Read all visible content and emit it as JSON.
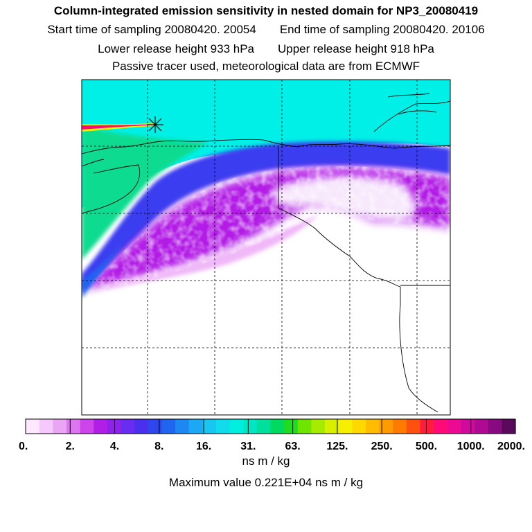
{
  "header": {
    "title": "Column-integrated emission sensitivity in nested domain for NP3_20080419",
    "start_label": "Start time of sampling 20080420. 20054",
    "end_label": "End time of sampling 20080420. 20106",
    "lower_label": "Lower release height  933 hPa",
    "upper_label": "Upper release height  918 hPa",
    "note": "Passive tracer used, meteorological data are from ECMWF"
  },
  "legend": {
    "ticks": [
      "0.",
      "2.",
      "4.",
      "8.",
      "16.",
      "31.",
      "63.",
      "125.",
      "250.",
      "500.",
      "1000.",
      "2000."
    ],
    "units": "ns m / kg",
    "max_line": "Maximum value  0.221E+04 ns m / kg",
    "colors": [
      "#fde8ff",
      "#f6c8fb",
      "#eaa6f5",
      "#dd77ef",
      "#cc44ea",
      "#b11fe6",
      "#8f22e8",
      "#6a2cf0",
      "#4a30ee",
      "#2f45ee",
      "#1f65f0",
      "#1e88f2",
      "#1ca8f4",
      "#18c6f2",
      "#10dcec",
      "#00eede",
      "#00e6c4",
      "#00df9c",
      "#00da60",
      "#20dc20",
      "#6ee400",
      "#a6ec00",
      "#d8f000",
      "#f6f000",
      "#ffd800",
      "#ffbc00",
      "#ff9c00",
      "#ff7a00",
      "#ff5010",
      "#ff1c3c",
      "#ff0a78",
      "#ec0a92",
      "#d00a9c",
      "#b00a94",
      "#880a80",
      "#5a0a5a"
    ]
  },
  "map": {
    "release_marker": "release-point-asterisk"
  }
}
